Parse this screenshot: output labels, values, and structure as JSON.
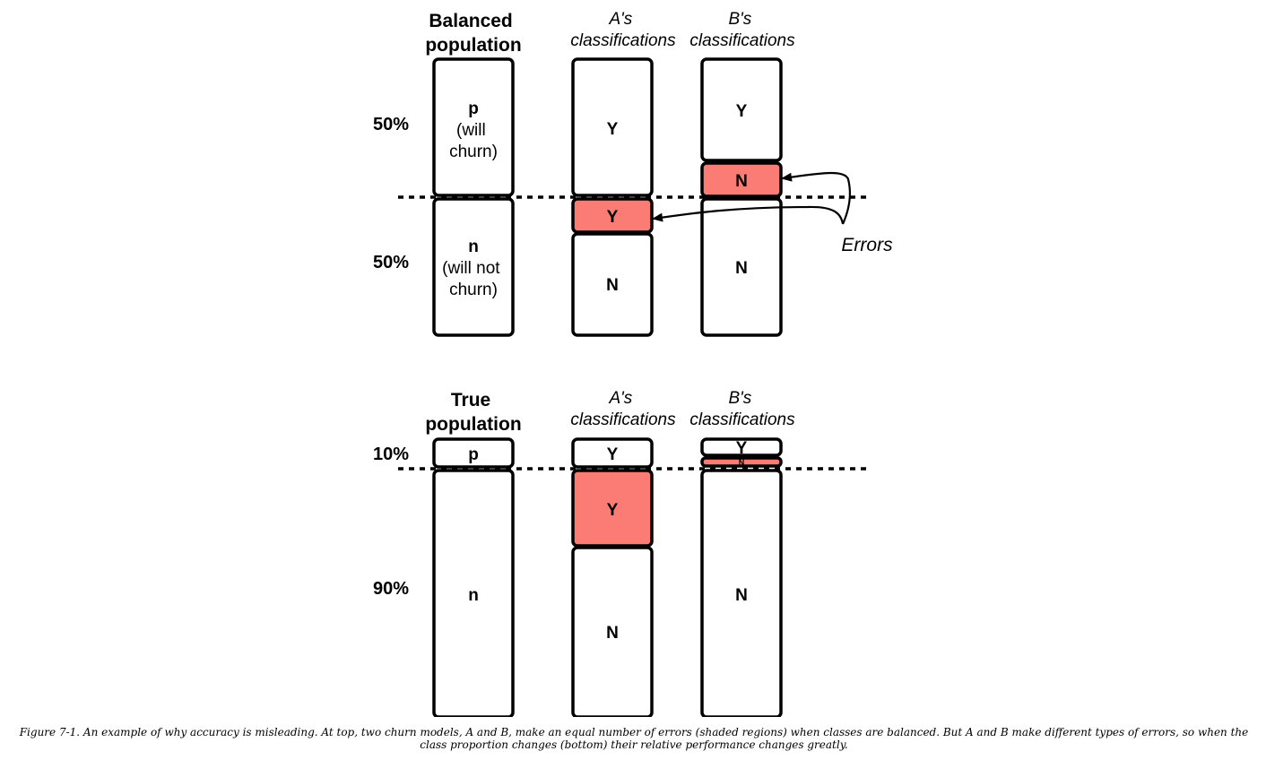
{
  "top": {
    "population_title": [
      "Balanced",
      "population"
    ],
    "a_header": [
      "A's",
      "classifications"
    ],
    "b_header": [
      "B's",
      "classifications"
    ],
    "pct_upper": "50%",
    "pct_lower": "50%",
    "pop_upper_label": "p",
    "pop_upper_sub": [
      "(will",
      "churn)"
    ],
    "pop_lower_label": "n",
    "pop_lower_sub": [
      "(will not",
      "churn)"
    ],
    "a_cells": [
      "Y",
      "Y",
      "N"
    ],
    "b_cells": [
      "Y",
      "N",
      "N"
    ],
    "errors_label": "Errors"
  },
  "bottom": {
    "population_title": [
      "True",
      "population"
    ],
    "a_header": [
      "A's",
      "classifications"
    ],
    "b_header": [
      "B's",
      "classifications"
    ],
    "pct_upper": "10%",
    "pct_lower": "90%",
    "pop_upper_label": "p",
    "pop_lower_label": "n",
    "a_cells": [
      "Y",
      "Y",
      "N"
    ],
    "b_cells": [
      "Y",
      "N",
      "N"
    ]
  },
  "colors": {
    "error_fill": "#fa7c74",
    "stroke": "#000000"
  },
  "caption": "Figure 7-1. An example of why accuracy is misleading. At top, two churn models, A and B, make an equal number of errors (shaded regions) when classes are balanced. But A and B make different types of errors, so when the class proportion changes (bottom) their relative performance changes greatly."
}
